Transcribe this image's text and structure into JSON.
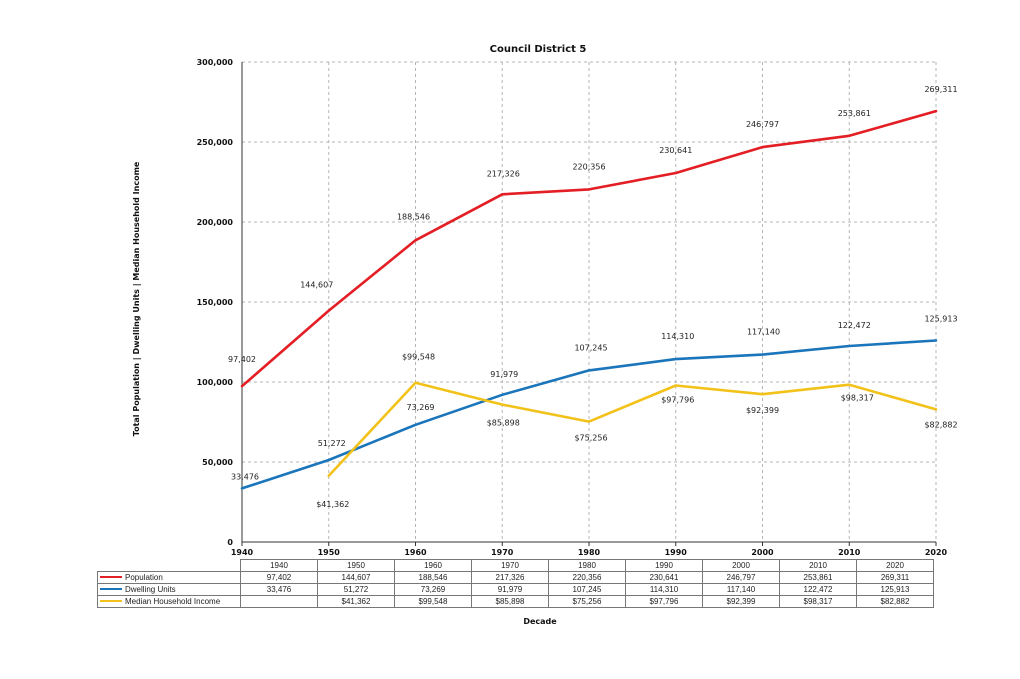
{
  "chart_data": {
    "type": "line",
    "title": "Council District 5",
    "xlabel": "Decade",
    "ylabel": "Total Population | Dwelling Units | Median Household Income",
    "ylim": [
      0,
      300000
    ],
    "yticks": [
      "0",
      "50,000",
      "100,000",
      "150,000",
      "200,000",
      "250,000",
      "300,000"
    ],
    "ytick_values": [
      0,
      50000,
      100000,
      150000,
      200000,
      250000,
      300000
    ],
    "categories": [
      "1940",
      "1950",
      "1960",
      "1970",
      "1980",
      "1990",
      "2000",
      "2010",
      "2020"
    ],
    "grid": true,
    "legend": "table-below",
    "series": [
      {
        "name": "Population",
        "color": "#e31e24",
        "values": [
          97402,
          144607,
          188546,
          217326,
          220356,
          230641,
          246797,
          253861,
          269311
        ],
        "labels": [
          "97,402",
          "144,607",
          "188,546",
          "217,326",
          "220,356",
          "230,641",
          "246,797",
          "253,861",
          "269,311"
        ]
      },
      {
        "name": "Dwelling Units",
        "color": "#1b75bb",
        "values": [
          33476,
          51272,
          73269,
          91979,
          107245,
          114310,
          117140,
          122472,
          125913
        ],
        "labels": [
          "33,476",
          "51,272",
          "73,269",
          "91,979",
          "107,245",
          "114,310",
          "117,140",
          "122,472",
          "125,913"
        ]
      },
      {
        "name": "Median Household Income",
        "color": "#f2c21a",
        "values": [
          null,
          41362,
          99548,
          85898,
          75256,
          97796,
          92399,
          98317,
          82882
        ],
        "labels": [
          "",
          "$41,362",
          "$99,548",
          "$85,898",
          "$75,256",
          "$97,796",
          "$92,399",
          "$98,317",
          "$82,882"
        ]
      }
    ]
  }
}
